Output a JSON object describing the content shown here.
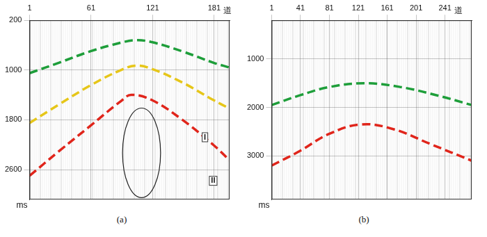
{
  "chart_data": [
    {
      "type": "line",
      "title": "(a)",
      "x_label": "道",
      "y_label": "ms",
      "xlim": [
        1,
        196
      ],
      "xticks": [
        1,
        61,
        121,
        181
      ],
      "ylim": [
        200,
        3080
      ],
      "yticks": [
        200,
        1000,
        1800,
        2600
      ],
      "grid": true,
      "series": [
        {
          "color": "#1e9e3a",
          "line_style": "dashed",
          "x": [
            1,
            30,
            60,
            90,
            105,
            120,
            150,
            180,
            196
          ],
          "values": [
            1050,
            880,
            700,
            560,
            520,
            550,
            700,
            880,
            960
          ]
        },
        {
          "color": "#e6c619",
          "line_style": "dashed",
          "x": [
            1,
            30,
            60,
            90,
            105,
            120,
            150,
            180,
            196
          ],
          "values": [
            1850,
            1550,
            1250,
            1000,
            930,
            980,
            1200,
            1480,
            1620
          ]
        },
        {
          "color": "#e0251b",
          "line_style": "dashed",
          "x": [
            1,
            30,
            60,
            90,
            100,
            120,
            150,
            180,
            196
          ],
          "values": [
            2700,
            2300,
            1900,
            1500,
            1400,
            1480,
            1800,
            2200,
            2450
          ]
        }
      ],
      "annotations": [
        {
          "text": "I",
          "x": 172,
          "y": 2080
        },
        {
          "text": "II",
          "x": 180,
          "y": 2780
        }
      ]
    },
    {
      "type": "line",
      "title": "(b)",
      "x_label": "道",
      "y_label": "ms",
      "xlim": [
        1,
        278
      ],
      "xticks": [
        1,
        41,
        81,
        121,
        161,
        201,
        241
      ],
      "ylim": [
        200,
        3900
      ],
      "yticks": [
        1000,
        2000,
        3000
      ],
      "grid": true,
      "series": [
        {
          "color": "#1e9e3a",
          "line_style": "dashed",
          "x": [
            1,
            40,
            80,
            130,
            180,
            230,
            278
          ],
          "values": [
            1950,
            1750,
            1580,
            1500,
            1580,
            1750,
            1950
          ]
        },
        {
          "color": "#e0251b",
          "line_style": "dashed",
          "x": [
            1,
            40,
            80,
            125,
            170,
            220,
            278
          ],
          "values": [
            3200,
            2900,
            2550,
            2350,
            2450,
            2750,
            3100
          ]
        }
      ]
    }
  ]
}
